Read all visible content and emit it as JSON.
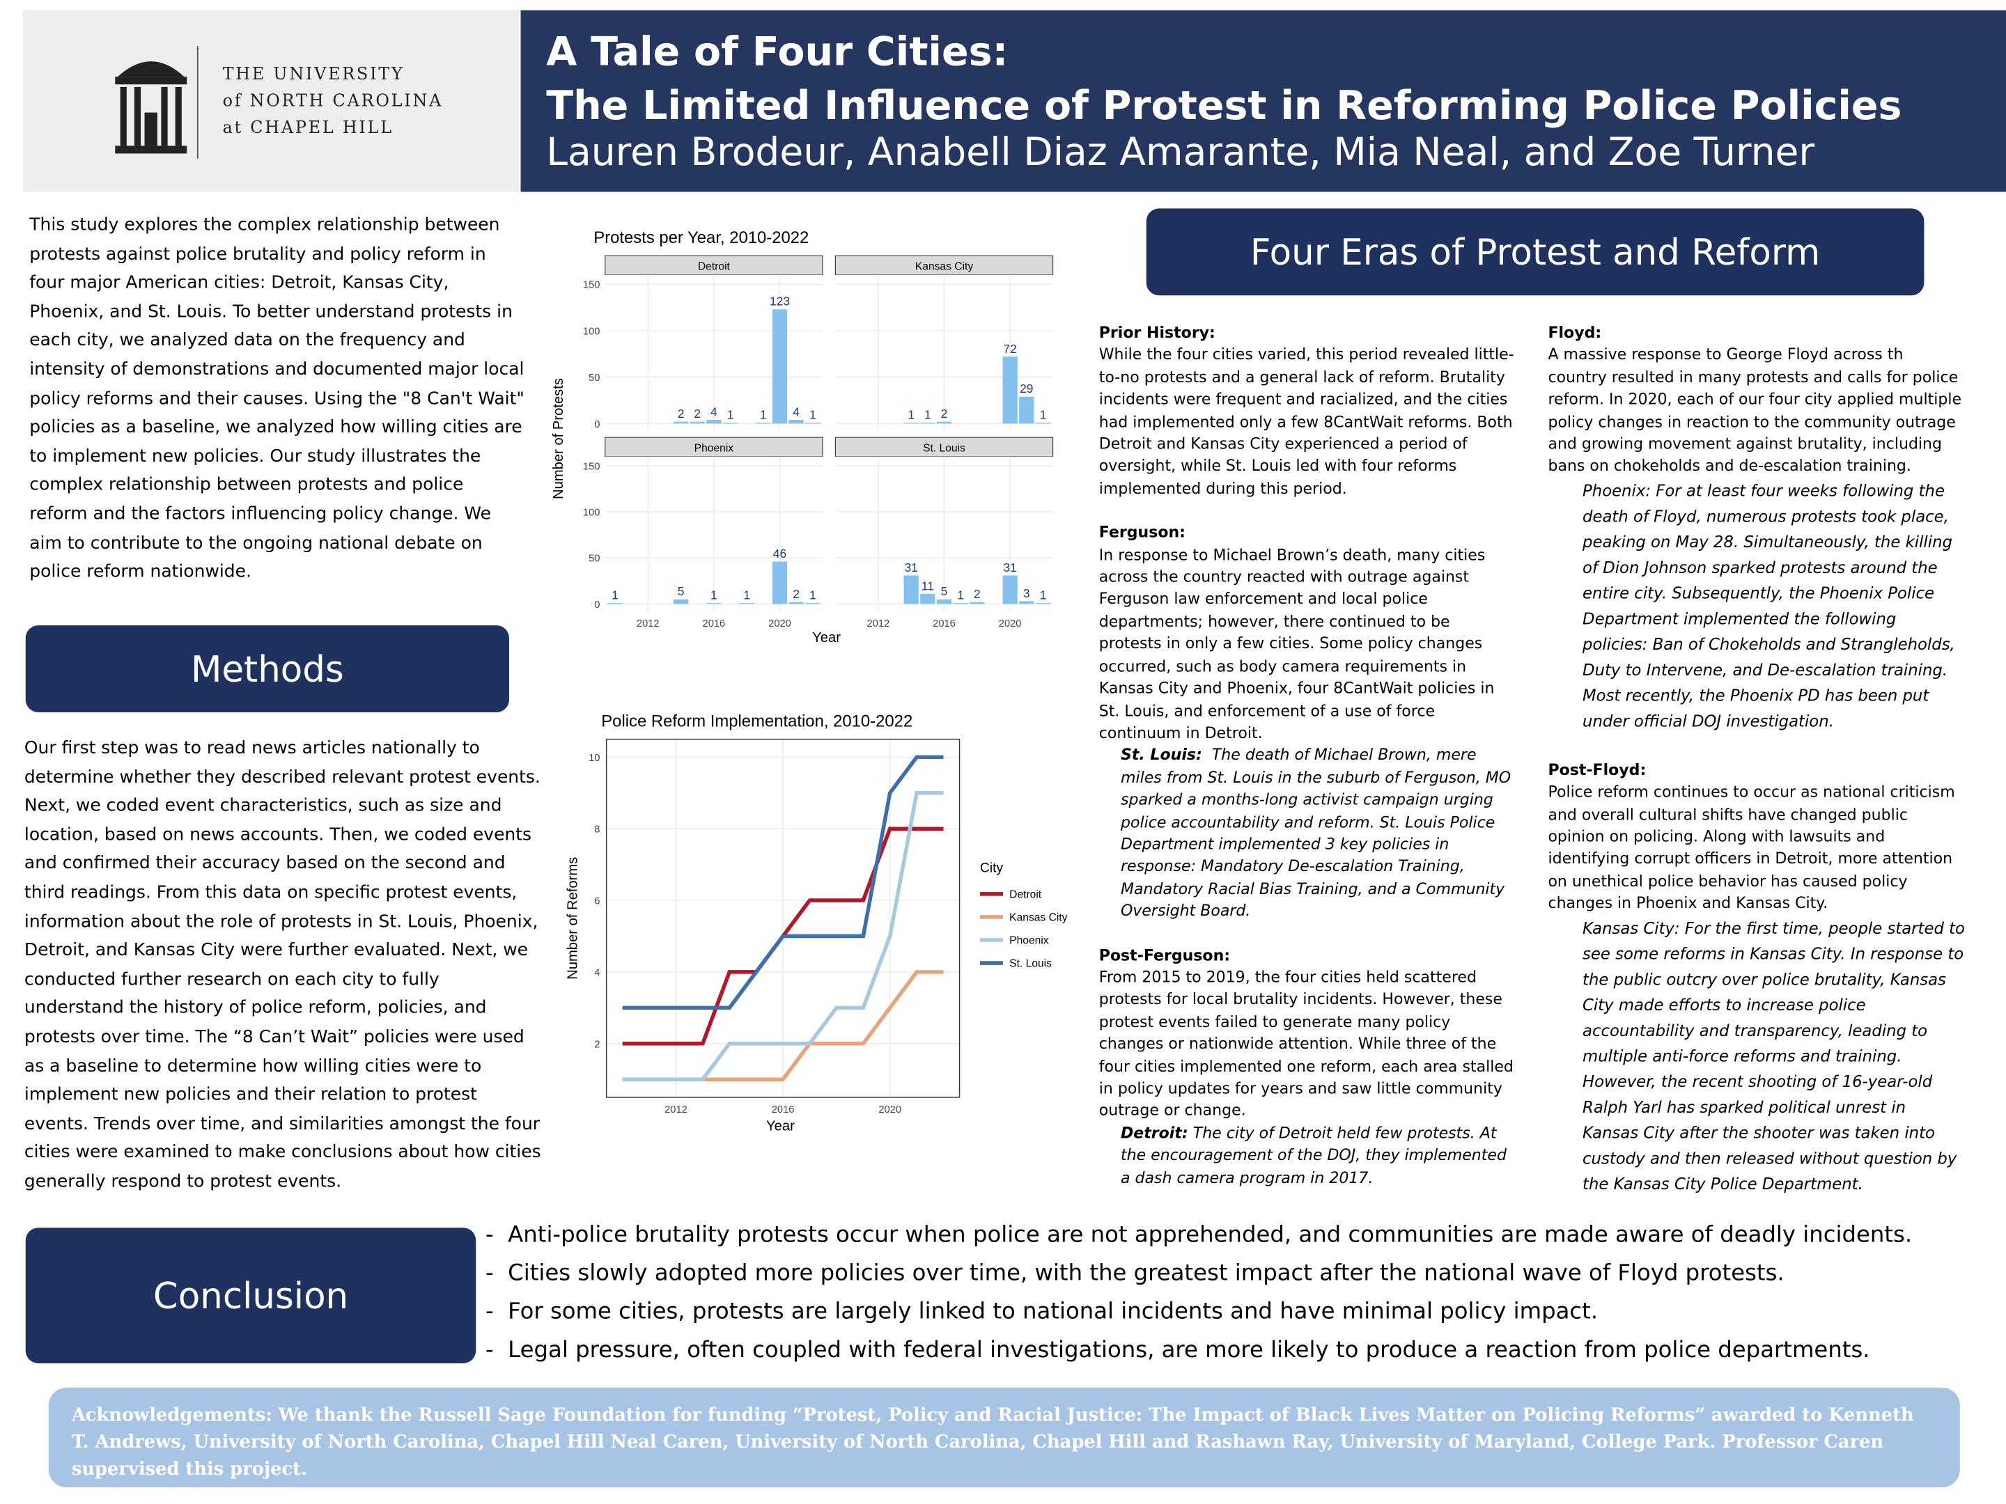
{
  "header": {
    "logo_lines": [
      "THE UNIVERSITY",
      "of NORTH CAROLINA",
      "at CHAPEL HILL"
    ],
    "title_lines": [
      "A Tale of Four Cities:",
      "The Limited Influence of Protest in Reforming Police Policies"
    ],
    "authors": "Lauren Brodeur, Anabell Diaz Amarante, Mia Neal, and Zoe Turner"
  },
  "intro": "This study explores the complex relationship between protests against police brutality and policy reform in four major American cities: Detroit, Kansas City, Phoenix, and St. Louis. To better understand protests in each city, we analyzed data on the frequency and intensity of demonstrations and documented major local policy reforms and their causes. Using the \"8 Can't Wait\" policies as a baseline, we analyzed how willing cities are to implement new policies. Our study illustrates the complex relationship between protests and police reform and the factors influencing policy change. We aim to contribute to the ongoing national debate on police reform nationwide.",
  "methods": {
    "heading": "Methods",
    "text": "Our first step was to read news articles nationally to determine whether they described relevant protest events. Next, we coded event characteristics, such as size and location, based on news accounts. Then, we coded events and confirmed their accuracy based on the second and third readings. From this data on specific protest events, information about the role of protests in St. Louis, Phoenix, Detroit, and Kansas City were further evaluated. Next, we conducted further research on each city to fully understand the history of police reform, policies, and protests over time. The “8 Can’t Wait” policies were used as a baseline to determine how willing cities were to implement new policies and their relation to protest events. Trends over time, and similarities amongst the four cities were examined to make conclusions about how cities generally respond to protest events."
  },
  "eras": {
    "heading": "Four Eras of Protest and Reform",
    "sections": [
      {
        "heading": "Prior History:",
        "text": "While the four cities varied, this period revealed little-to-no protests and a general lack of reform. Brutality incidents were frequent and racialized, and the cities had implemented only a few 8CantWait reforms. Both Detroit and Kansas City experienced a period of oversight, while St. Louis led with four reforms implemented during this period."
      },
      {
        "heading": "Ferguson:",
        "text": "In response to Michael Brown’s death, many cities across the country reacted with outrage against Ferguson law enforcement and local police departments; however, there continued to be protests in only a few cities. Some policy changes occurred, such as body camera requirements in Kansas City and Phoenix, four 8CantWait policies in St. Louis, and enforcement of a use of force continuum in Detroit.",
        "case_label": "St. Louis:",
        "case_text": "The death of Michael Brown, mere miles from St. Louis in the suburb of Ferguson, MO sparked a months-long activist campaign urging police accountability and reform. St. Louis Police Department implemented 3 key policies in response:  Mandatory De-escalation Training, Mandatory Racial Bias Training, and a Community Oversight Board."
      },
      {
        "heading": "Post-Ferguson:",
        "text": "From 2015 to 2019, the four cities held scattered protests for local brutality incidents. However, these protest events failed to generate many policy changes or nationwide attention. While three of the four cities implemented one reform, each area stalled in policy updates for years and saw little community outrage or change.",
        "case_label": "Detroit:",
        "case_text": "The city of Detroit held few protests. At the encouragement of the DOJ, they implemented a dash camera program in 2017."
      },
      {
        "heading": "Floyd:",
        "text": "A massive response to George Floyd across th country resulted in many protests and calls for police reform. In 2020, each of our four city applied multiple policy changes in reaction to the community outrage and growing movement against brutality, including bans on chokeholds and de-escalation training.",
        "case_text": "Phoenix: For at least four weeks following the death of Floyd, numerous protests took place, peaking on May 28. Simultaneously, the killing of Dion Johnson sparked protests around the entire city. Subsequently, the Phoenix Police Department implemented the following policies: Ban of Chokeholds and Strangleholds, Duty to Intervene, and De-escalation training. Most recently, the Phoenix PD has been put under official DOJ investigation."
      },
      {
        "heading": "Post-Floyd:",
        "text": "Police reform continues to occur as national criticism and overall cultural shifts have changed public opinion on policing. Along with lawsuits and identifying corrupt officers in Detroit, more attention on unethical police behavior has caused policy changes in Phoenix and Kansas City.",
        "case_text": "Kansas City: For the first time, people started to see some reforms in Kansas City. In response to the public outcry over police brutality, Kansas City made efforts to increase police accountability and transparency, leading to multiple anti-force reforms and training. However, the recent shooting of 16-year-old Ralph Yarl has sparked political unrest in Kansas City after the shooter was taken into custody and then released without question by the Kansas City Police Department."
      }
    ]
  },
  "conclusion": {
    "heading": "Conclusion",
    "points": [
      "Anti-police brutality protests occur when police are not apprehended, and communities are made aware of deadly incidents.",
      "Cities slowly adopted more policies over time, with the greatest impact after the national wave of Floyd protests.",
      "For some cities, protests are largely linked to national incidents and have minimal policy impact.",
      "Legal pressure, often coupled with federal investigations, are more likely to produce a reaction from police departments."
    ]
  },
  "acknowledgements": "Acknowledgements: We thank the Russell Sage Foundation for funding “Protest, Policy and Racial Justice: The Impact of Black Lives Matter on Policing Reforms” awarded to Kenneth T. Andrews, University of North Carolina, Chapel Hill  Neal Caren, University of North Carolina, Chapel Hill  and Rashawn Ray, University of Maryland, College Park. Professor Caren supervised this project.",
  "chart_data": [
    {
      "type": "bar",
      "title": "Protests per Year, 2010-2022",
      "xlabel": "Year",
      "ylabel": "Number of Protests",
      "color": "#85c1ee",
      "xlim": [
        2009.4,
        2022.6
      ],
      "xticks": [
        2012,
        2016,
        2020
      ],
      "ylim": [
        -8,
        160
      ],
      "yticks": [
        0,
        50,
        100,
        150
      ],
      "grid": true,
      "panels": [
        {
          "name": "Detroit",
          "x": [
            2014,
            2015,
            2016,
            2017,
            2019,
            2020,
            2021,
            2022
          ],
          "values": [
            2,
            2,
            4,
            1,
            1,
            123,
            4,
            1
          ]
        },
        {
          "name": "Kansas City",
          "x": [
            2014,
            2015,
            2016,
            2020,
            2021,
            2022
          ],
          "values": [
            1,
            1,
            2,
            72,
            29,
            1
          ]
        },
        {
          "name": "Phoenix",
          "x": [
            2010,
            2014,
            2016,
            2018,
            2020,
            2021,
            2022
          ],
          "values": [
            1,
            5,
            1,
            1,
            46,
            2,
            1
          ]
        },
        {
          "name": "St. Louis",
          "x": [
            2014,
            2015,
            2016,
            2017,
            2018,
            2020,
            2021,
            2022
          ],
          "values": [
            31,
            11,
            5,
            1,
            2,
            31,
            3,
            1
          ]
        }
      ]
    },
    {
      "type": "line",
      "title": "Police Reform Implementation, 2010-2022",
      "xlabel": "Year",
      "ylabel": "Number of Reforms",
      "legend_title": "City",
      "xlim": [
        2009.4,
        2022.6
      ],
      "xticks": [
        2012,
        2016,
        2020
      ],
      "ylim": [
        0.5,
        10.5
      ],
      "yticks": [
        2,
        4,
        6,
        8,
        10
      ],
      "grid": true,
      "x": [
        2010,
        2011,
        2012,
        2013,
        2014,
        2015,
        2016,
        2017,
        2018,
        2019,
        2020,
        2021,
        2022
      ],
      "series": [
        {
          "name": "Detroit",
          "color": "#b2182b",
          "values": [
            2,
            2,
            2,
            2,
            4,
            4,
            5,
            6,
            6,
            6,
            8,
            8,
            8
          ]
        },
        {
          "name": "Kansas City",
          "color": "#e4a47c",
          "values": [
            1,
            1,
            1,
            1,
            1,
            1,
            1,
            2,
            2,
            2,
            3,
            4,
            4
          ]
        },
        {
          "name": "Phoenix",
          "color": "#a8c8e0",
          "values": [
            1,
            1,
            1,
            1,
            2,
            2,
            2,
            2,
            3,
            3,
            5,
            9,
            9
          ]
        },
        {
          "name": "St. Louis",
          "color": "#3d6fa8",
          "values": [
            3,
            3,
            3,
            3,
            3,
            4,
            5,
            5,
            5,
            5,
            9,
            10,
            10
          ]
        }
      ]
    }
  ]
}
